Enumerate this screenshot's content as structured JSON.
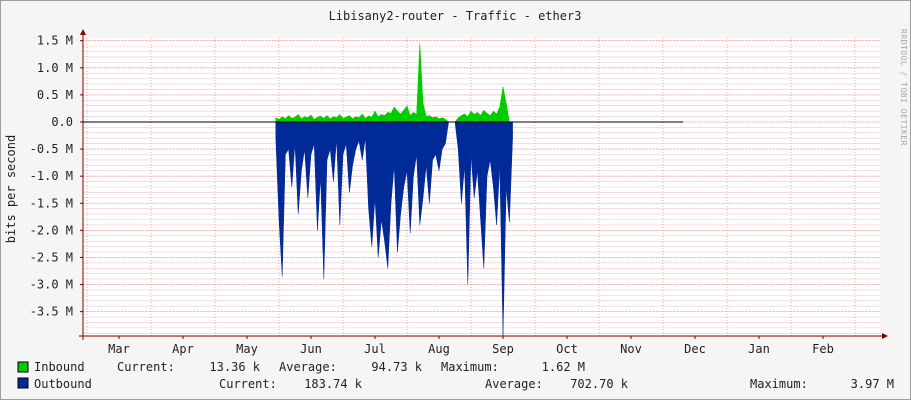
{
  "chart_data": {
    "type": "area",
    "title": "Libisany2-router - Traffic - ether3",
    "ylabel": "bits per second",
    "side_label": "RRDTOOL / TOBI OETIKER",
    "ylim": [
      -3.95,
      1.55
    ],
    "y_ticks": [
      {
        "value": 1.5,
        "label": "1.5 M"
      },
      {
        "value": 1.0,
        "label": "1.0 M"
      },
      {
        "value": 0.5,
        "label": "0.5 M"
      },
      {
        "value": 0.0,
        "label": "0.0"
      },
      {
        "value": -0.5,
        "label": "-0.5 M"
      },
      {
        "value": -1.0,
        "label": "-1.0 M"
      },
      {
        "value": -1.5,
        "label": "-1.5 M"
      },
      {
        "value": -2.0,
        "label": "-2.0 M"
      },
      {
        "value": -2.5,
        "label": "-2.5 M"
      },
      {
        "value": -3.0,
        "label": "-3.0 M"
      },
      {
        "value": -3.5,
        "label": "-3.5 M"
      }
    ],
    "x_ticks": [
      "Mar",
      "Apr",
      "May",
      "Jun",
      "Jul",
      "Aug",
      "Sep",
      "Oct",
      "Nov",
      "Dec",
      "Jan",
      "Feb"
    ],
    "colors": {
      "inbound": "#00cc00",
      "outbound": "#002a97",
      "grid": "#e08080",
      "axis": "#800000"
    },
    "series": [
      {
        "name": "Inbound",
        "x_start": 2.45,
        "x_step": 0.05,
        "values": [
          0.08,
          0.05,
          0.1,
          0.06,
          0.12,
          0.07,
          0.09,
          0.14,
          0.06,
          0.1,
          0.08,
          0.13,
          0.05,
          0.09,
          0.11,
          0.07,
          0.12,
          0.06,
          0.1,
          0.08,
          0.14,
          0.07,
          0.09,
          0.12,
          0.06,
          0.1,
          0.08,
          0.15,
          0.07,
          0.11,
          0.09,
          0.2,
          0.1,
          0.14,
          0.12,
          0.18,
          0.16,
          0.28,
          0.2,
          0.15,
          0.22,
          0.3,
          0.12,
          0.18,
          0.14,
          1.45,
          0.35,
          0.1,
          0.12,
          0.08,
          0.1,
          0.06,
          0.08,
          0.05,
          0.0,
          0.0,
          0.0,
          0.08,
          0.12,
          0.15,
          0.1,
          0.2,
          0.14,
          0.18,
          0.12,
          0.22,
          0.16,
          0.12,
          0.2,
          0.15,
          0.28,
          0.65,
          0.35,
          0.0
        ]
      },
      {
        "name": "Outbound",
        "x_start": 2.45,
        "x_step": 0.05,
        "values": [
          -0.3,
          -1.8,
          -2.85,
          -0.6,
          -0.5,
          -1.2,
          -0.4,
          -1.7,
          -0.9,
          -0.5,
          -1.4,
          -0.6,
          -0.4,
          -2.0,
          -1.0,
          -2.9,
          -0.7,
          -0.5,
          -1.1,
          -0.3,
          -1.9,
          -0.6,
          -0.4,
          -1.3,
          -0.8,
          -0.5,
          -0.35,
          -0.7,
          -0.3,
          -1.6,
          -2.3,
          -1.4,
          -2.5,
          -1.8,
          -2.2,
          -2.7,
          -1.5,
          -0.8,
          -2.4,
          -1.7,
          -1.2,
          -0.9,
          -2.05,
          -1.0,
          -0.6,
          -1.9,
          -1.4,
          -0.8,
          -1.5,
          -0.7,
          -0.6,
          -0.9,
          -0.5,
          -0.4,
          0.0,
          0.0,
          0.0,
          -0.5,
          -1.5,
          -0.8,
          -3.0,
          -0.6,
          -1.4,
          -0.9,
          -1.8,
          -2.7,
          -1.0,
          -0.7,
          -1.2,
          -1.9,
          -0.8,
          -3.95,
          -1.2,
          -1.85,
          -0.3
        ]
      }
    ],
    "legend": [
      {
        "name": "Inbound",
        "current_label": "Current:",
        "current": "13.36 k",
        "average_label": "Average:",
        "average": "94.73 k",
        "maximum_label": "Maximum:",
        "maximum": "1.62 M"
      },
      {
        "name": "Outbound",
        "current_label": "Current:",
        "current": "183.74 k",
        "average_label": "Average:",
        "average": "702.70 k",
        "maximum_label": "Maximum:",
        "maximum": "3.97 M"
      }
    ]
  }
}
